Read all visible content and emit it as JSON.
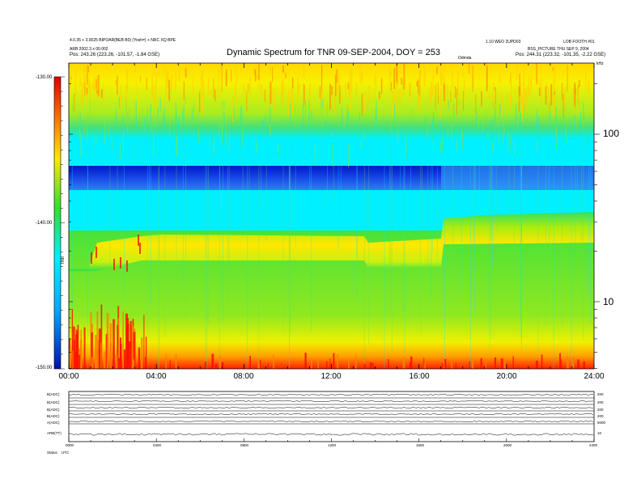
{
  "chart_data": {
    "type": "heatmap",
    "title": "Dynamic Spectrum for TNR 09-SEP-2004, DOY = 253",
    "x_ticks": [
      "00:00",
      "04:00",
      "08:00",
      "12:00",
      "16:00",
      "20:00",
      "24:00"
    ],
    "y_ticks": [
      "100",
      "10"
    ],
    "y_unit": "kHz",
    "y_scale": "log",
    "colorbar_ticks": [
      "-130.00",
      "-140.00",
      "-150.00"
    ],
    "colorbar_label": "TNR",
    "colorbar_range": [
      -150,
      -130
    ],
    "colors": {
      "background_continuum": "#33ee44",
      "band_cyan": "#00f0ff",
      "band_blue": "#1030e0",
      "top_noise": "#f8f000",
      "bottom_edge": "#ff2000"
    }
  },
  "header": {
    "left_line1": "4.0.35 + 3.0025 BIPOAR(BEB B0) (Yosh=) + NRC XQ BPE",
    "left_line2": "ARB 2002.3.x 00.002",
    "left_pos": "Pos:   243.26 (223.26, -101.57, -1.84 GSE)",
    "center_right": "Odmda",
    "right_line1": "1.10 WEO 2UPD03",
    "right_line2": "LOB FOOTH #01",
    "right_line3": "BSS_PICTURE  THU SEP 9, 2004",
    "right_pos": "Pos:   244.31 (223.32, -101.35, -2.22 GSE)",
    "corner_unit": "kHz"
  },
  "bottom_panels": {
    "left_labels": [
      "B(ADC)",
      "B(ADC)",
      "B(ADC)",
      "B(ADC)",
      "A(ADC)",
      "ARB(TT)"
    ],
    "right_labels": [
      "200",
      "200",
      "200",
      "200",
      "5000",
      "10"
    ],
    "time_ticks": [
      "0000",
      "0400",
      "0800",
      "1200",
      "1600",
      "2000",
      "2400"
    ],
    "footer_left": "Status",
    "footer_right": "UTC"
  }
}
